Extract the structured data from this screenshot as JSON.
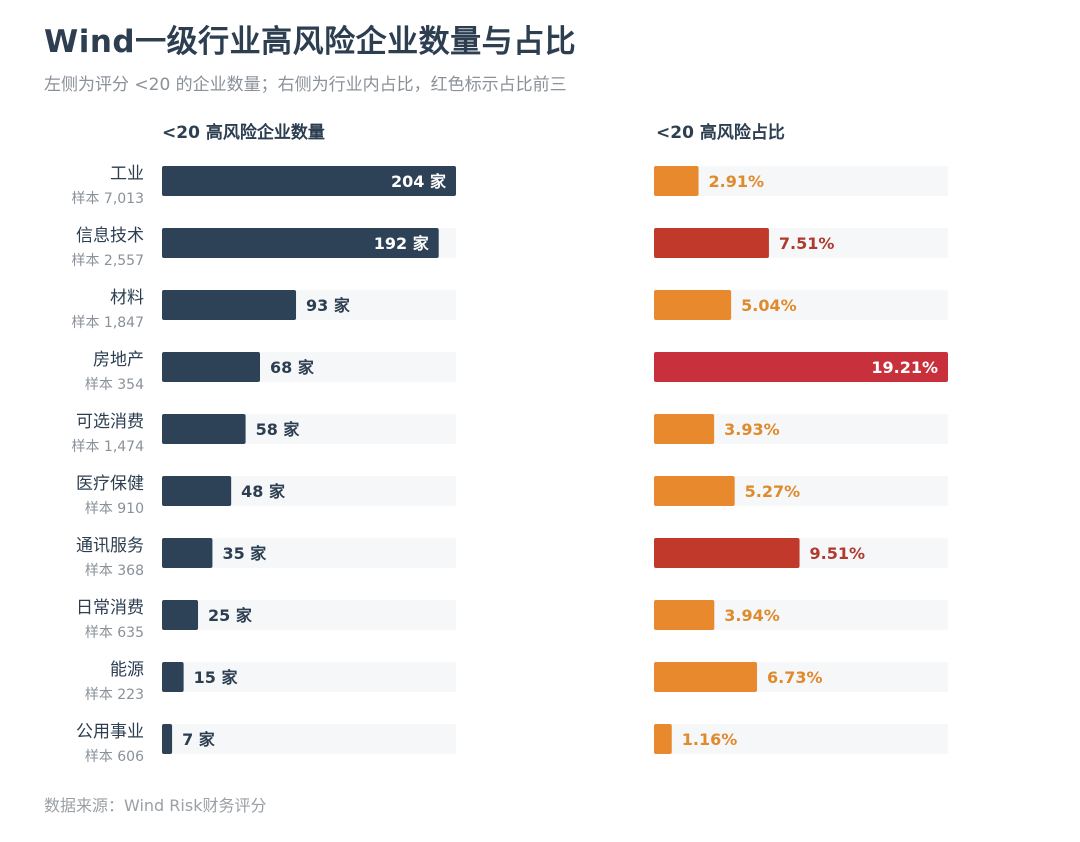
{
  "title": "Wind一级行业高风险企业数量与占比",
  "subtitle": "左侧为评分 <20 的企业数量；右侧为行业内占比，红色标示占比前三",
  "left_header": "<20 高风险企业数量",
  "right_header": "<20 高风险占比",
  "source": "数据来源：Wind Risk财务评分",
  "colors": {
    "count_bar": "#2e4257",
    "track": "#f5f7f9",
    "share_orange": "#e8892e",
    "share_red": "#c0392b",
    "share_red_top": "#c8303c",
    "label_dark": "#2c3e50",
    "label_orange": "#e08a2c",
    "label_red": "#b03a2e",
    "sample_text": "#8a9199"
  },
  "chart_data": [
    {
      "type": "bar",
      "orientation": "horizontal",
      "title": "<20 高风险企业数量",
      "categories": [
        "工业",
        "信息技术",
        "材料",
        "房地产",
        "可选消费",
        "医疗保健",
        "通讯服务",
        "日常消费",
        "能源",
        "公用事业"
      ],
      "samples": [
        "样本 7,013",
        "样本 2,557",
        "样本 1,847",
        "样本 354",
        "样本 1,474",
        "样本 910",
        "样本 368",
        "样本 635",
        "样本 223",
        "样本 606"
      ],
      "values": [
        204,
        192,
        93,
        68,
        58,
        48,
        35,
        25,
        15,
        7
      ],
      "labels": [
        "204 家",
        "192 家",
        "93 家",
        "68 家",
        "58 家",
        "48 家",
        "35 家",
        "25 家",
        "15 家",
        "7 家"
      ],
      "xlim": [
        0,
        204
      ]
    },
    {
      "type": "bar",
      "orientation": "horizontal",
      "title": "<20 高风险占比",
      "categories": [
        "工业",
        "信息技术",
        "材料",
        "房地产",
        "可选消费",
        "医疗保健",
        "通讯服务",
        "日常消费",
        "能源",
        "公用事业"
      ],
      "values": [
        2.91,
        7.51,
        5.04,
        19.21,
        3.93,
        5.27,
        9.51,
        3.94,
        6.73,
        1.16
      ],
      "labels": [
        "2.91%",
        "7.51%",
        "5.04%",
        "19.21%",
        "3.93%",
        "5.27%",
        "9.51%",
        "3.94%",
        "6.73%",
        "1.16%"
      ],
      "top3": [
        false,
        true,
        false,
        true,
        false,
        false,
        true,
        false,
        false,
        false
      ],
      "xlim": [
        0,
        19.21
      ]
    }
  ]
}
